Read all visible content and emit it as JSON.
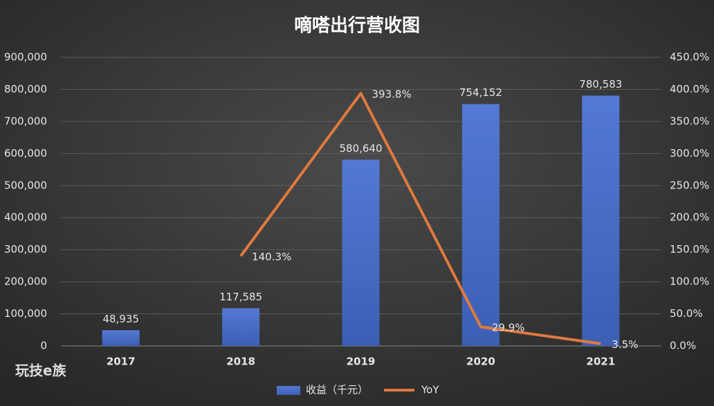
{
  "chart_data": {
    "type": "bar_line",
    "title": "嘀嗒出行营收图",
    "categories": [
      "2017",
      "2018",
      "2019",
      "2020",
      "2021"
    ],
    "series": [
      {
        "name": "收益（千元）",
        "color": "#4a6fc9",
        "type": "bar",
        "values": [
          48935,
          117585,
          580640,
          754152,
          780583
        ],
        "value_labels": [
          "48,935",
          "117,585",
          "580,640",
          "754,152",
          "780,583"
        ]
      },
      {
        "name": "YoY",
        "color": "#e07a3e",
        "type": "line",
        "axis": "y2",
        "values": [
          null,
          140.3,
          393.8,
          29.9,
          3.5
        ],
        "value_labels": [
          null,
          "140.3%",
          "393.8%",
          "29.9%",
          "3.5%"
        ]
      }
    ],
    "ylim": [
      0,
      900000
    ],
    "yticks": [
      0,
      {
        "value": 100000,
        "label": "100,000"
      },
      {
        "value": 200000,
        "label": "200,000"
      },
      {
        "value": 300000,
        "label": "300,000"
      },
      {
        "value": 400000,
        "label": "400,000"
      },
      {
        "value": 500000,
        "label": "500,000"
      },
      {
        "value": 600000,
        "label": "600,000"
      },
      {
        "value": 700000,
        "label": "700,000"
      },
      {
        "value": 800000,
        "label": "800,000"
      },
      {
        "value": 900000,
        "label": "900,000"
      }
    ],
    "y2lim": [
      0,
      450
    ],
    "y2ticks": [
      {
        "value": 0,
        "label": "0.0%"
      },
      {
        "value": 50,
        "label": "50.0%"
      },
      {
        "value": 100,
        "label": "100.0%"
      },
      {
        "value": 150,
        "label": "150.0%"
      },
      {
        "value": 200,
        "label": "200.0%"
      },
      {
        "value": 250,
        "label": "250.0%"
      },
      {
        "value": 300,
        "label": "300.0%"
      },
      {
        "value": 350,
        "label": "350.0%"
      },
      {
        "value": 400,
        "label": "400.0%"
      },
      {
        "value": 450,
        "label": "450.0%"
      }
    ],
    "grid": true,
    "legend": "bottom",
    "watermark": "玩技e族"
  }
}
